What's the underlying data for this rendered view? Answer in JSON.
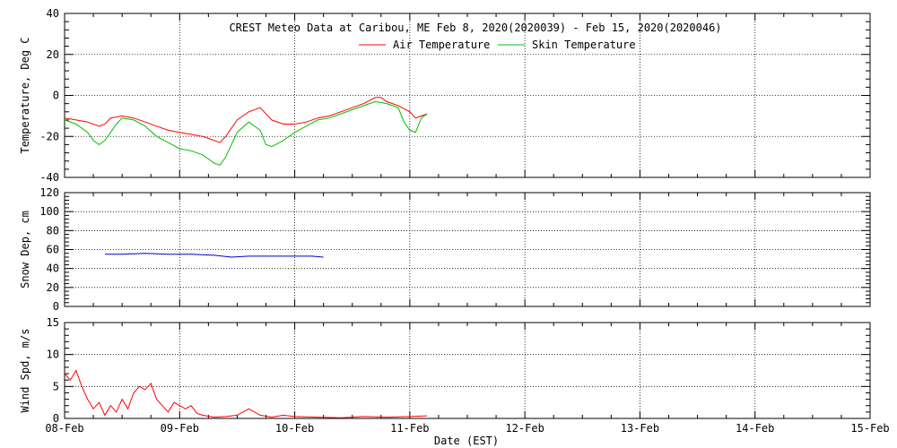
{
  "figure": {
    "title": "CREST Meteo Data at Caribou, ME   Feb  8, 2020(2020039) - Feb 15, 2020(2020046)",
    "xlabel": "Date (EST)"
  },
  "chart_data": [
    {
      "type": "line",
      "ylabel": "Temperature, Deg C",
      "ylim": [
        -40,
        40
      ],
      "yticks": [
        -40,
        -20,
        0,
        20,
        40
      ],
      "xlim": [
        0,
        7
      ],
      "x_ticklabels": [
        "08-Feb",
        "09-Feb",
        "10-Feb",
        "11-Feb",
        "12-Feb",
        "13-Feb",
        "14-Feb",
        "15-Feb"
      ],
      "grid": true,
      "legend_position": "top-center",
      "series": [
        {
          "name": "Air Temperature",
          "color": "#ff0000",
          "x": [
            0,
            0.1,
            0.2,
            0.3,
            0.35,
            0.4,
            0.5,
            0.6,
            0.7,
            0.8,
            0.9,
            1.0,
            1.1,
            1.2,
            1.25,
            1.3,
            1.35,
            1.4,
            1.5,
            1.6,
            1.7,
            1.8,
            1.9,
            2.0,
            2.1,
            2.2,
            2.3,
            2.4,
            2.5,
            2.6,
            2.7,
            2.75,
            2.8,
            2.9,
            3.0,
            3.05,
            3.1,
            3.15
          ],
          "values": [
            -11,
            -12,
            -13,
            -15,
            -14,
            -11,
            -10,
            -11,
            -13,
            -15,
            -17,
            -18,
            -19,
            -20,
            -21,
            -22,
            -23,
            -20,
            -12,
            -8,
            -6,
            -12,
            -14,
            -14,
            -13,
            -11,
            -10,
            -8,
            -6,
            -4,
            -1,
            -1,
            -3,
            -5,
            -8,
            -11,
            -10,
            -9
          ]
        },
        {
          "name": "Skin Temperature",
          "color": "#00c000",
          "x": [
            0,
            0.1,
            0.2,
            0.25,
            0.3,
            0.35,
            0.4,
            0.45,
            0.5,
            0.6,
            0.7,
            0.8,
            0.9,
            1.0,
            1.1,
            1.2,
            1.3,
            1.35,
            1.4,
            1.5,
            1.6,
            1.7,
            1.75,
            1.8,
            1.9,
            2.0,
            2.1,
            2.2,
            2.3,
            2.4,
            2.5,
            2.6,
            2.7,
            2.8,
            2.9,
            2.95,
            3.0,
            3.05,
            3.1,
            3.15
          ],
          "values": [
            -12,
            -14,
            -18,
            -22,
            -24,
            -22,
            -18,
            -14,
            -11,
            -12,
            -15,
            -20,
            -23,
            -26,
            -27,
            -29,
            -33,
            -34,
            -30,
            -18,
            -13,
            -17,
            -24,
            -25,
            -22,
            -18,
            -15,
            -12,
            -11,
            -9,
            -7,
            -5,
            -3,
            -4,
            -6,
            -13,
            -17,
            -18,
            -11,
            -9
          ]
        }
      ]
    },
    {
      "type": "line",
      "ylabel": "Snow Dep, cm",
      "ylim": [
        0,
        120
      ],
      "yticks": [
        0,
        20,
        40,
        60,
        80,
        100,
        120
      ],
      "xlim": [
        0,
        7
      ],
      "x_ticklabels": [
        "08-Feb",
        "09-Feb",
        "10-Feb",
        "11-Feb",
        "12-Feb",
        "13-Feb",
        "14-Feb",
        "15-Feb"
      ],
      "grid": true,
      "series": [
        {
          "color": "#0000cc",
          "x": [
            0.35,
            0.5,
            0.7,
            0.9,
            1.1,
            1.3,
            1.45,
            1.6,
            1.8,
            2.0,
            2.15,
            2.25
          ],
          "values": [
            55,
            55,
            56,
            55,
            55,
            54,
            52,
            53,
            53,
            53,
            53,
            52
          ]
        }
      ]
    },
    {
      "type": "line",
      "ylabel": "Wind Spd, m/s",
      "ylim": [
        0,
        15
      ],
      "yticks": [
        0,
        5,
        10,
        15
      ],
      "xlim": [
        0,
        7
      ],
      "x_ticklabels": [
        "08-Feb",
        "09-Feb",
        "10-Feb",
        "11-Feb",
        "12-Feb",
        "13-Feb",
        "14-Feb",
        "15-Feb"
      ],
      "grid": true,
      "series": [
        {
          "color": "#ff0000",
          "x": [
            0,
            0.05,
            0.1,
            0.15,
            0.2,
            0.25,
            0.3,
            0.35,
            0.4,
            0.45,
            0.5,
            0.55,
            0.6,
            0.65,
            0.7,
            0.75,
            0.8,
            0.85,
            0.9,
            0.95,
            1.0,
            1.05,
            1.1,
            1.15,
            1.2,
            1.3,
            1.4,
            1.5,
            1.6,
            1.7,
            1.8,
            1.9,
            2.0,
            2.2,
            2.4,
            2.6,
            2.8,
            3.0,
            3.15
          ],
          "values": [
            7,
            6,
            7.5,
            5,
            3,
            1.5,
            2.5,
            0.5,
            2,
            1,
            3,
            1.5,
            4,
            5,
            4.5,
            5.5,
            3,
            2,
            1,
            2.5,
            2,
            1.5,
            2,
            0.8,
            0.5,
            0.2,
            0.3,
            0.5,
            1.5,
            0.5,
            0.2,
            0.5,
            0.3,
            0.2,
            0.1,
            0.3,
            0.2,
            0.3,
            0.4
          ]
        }
      ]
    }
  ]
}
